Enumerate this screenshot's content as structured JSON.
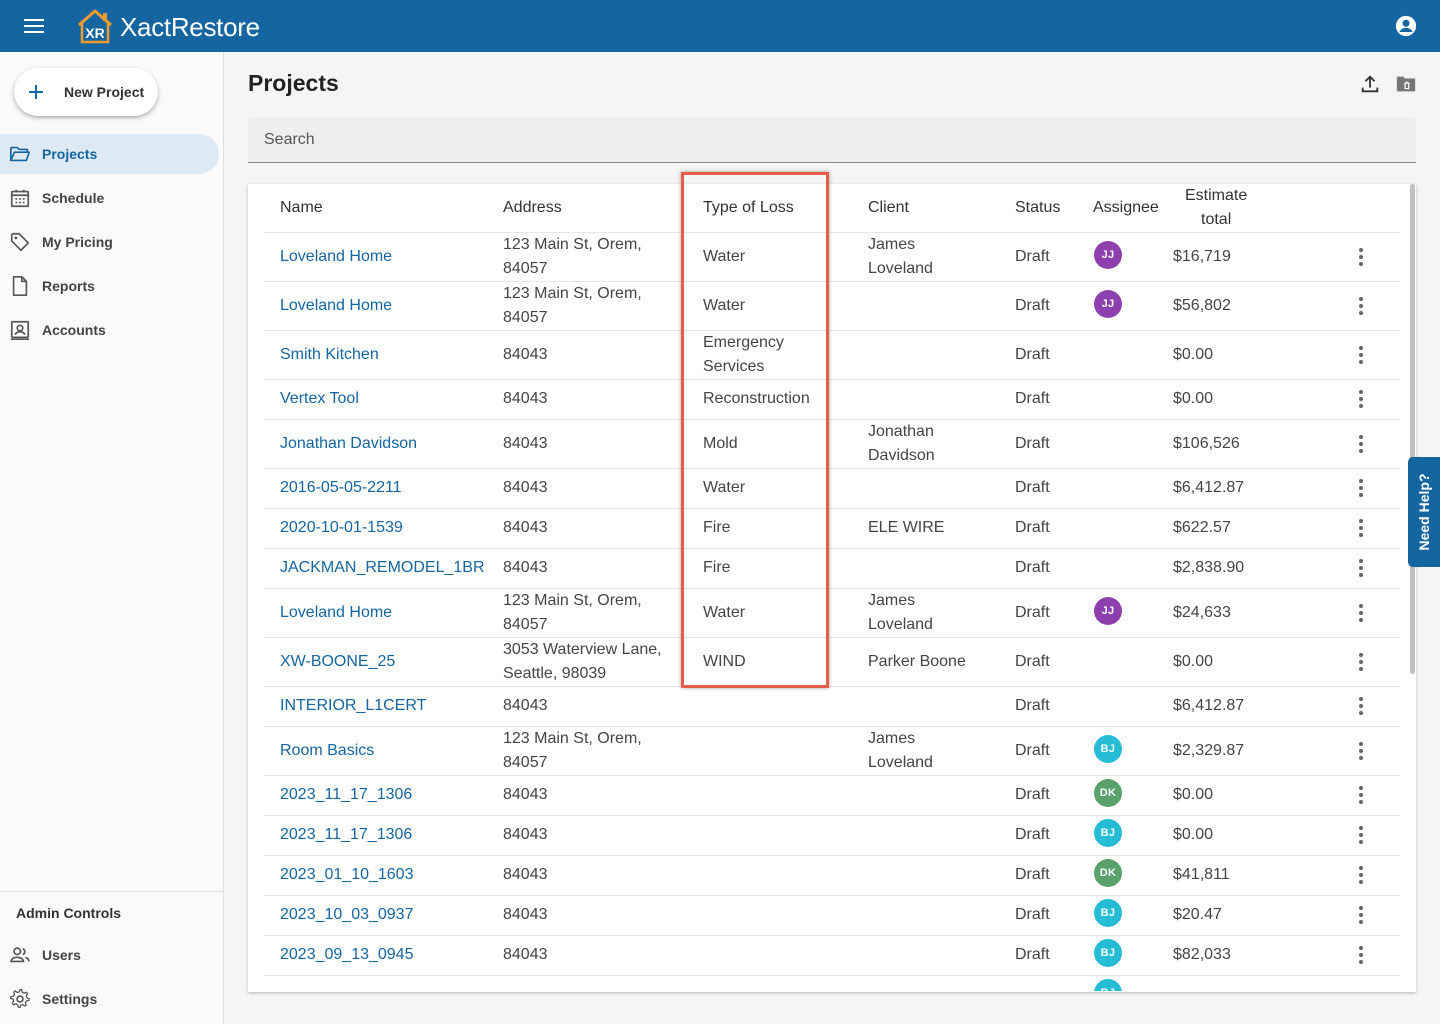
{
  "app": {
    "name": "XactRestore",
    "logo_text": "XR"
  },
  "sidebar": {
    "new_project_label": "New Project",
    "items": [
      {
        "label": "Projects",
        "icon": "folder-open-icon",
        "active": true
      },
      {
        "label": "Schedule",
        "icon": "calendar-icon"
      },
      {
        "label": "My Pricing",
        "icon": "tag-icon"
      },
      {
        "label": "Reports",
        "icon": "document-icon"
      },
      {
        "label": "Accounts",
        "icon": "contact-card-icon"
      }
    ],
    "admin_title": "Admin Controls",
    "admin_items": [
      {
        "label": "Users",
        "icon": "users-icon"
      },
      {
        "label": "Settings",
        "icon": "gear-icon"
      }
    ]
  },
  "main": {
    "title": "Projects",
    "search_placeholder": "Search"
  },
  "table": {
    "headers": {
      "name": "Name",
      "address": "Address",
      "type_of_loss": "Type of Loss",
      "client": "Client",
      "status": "Status",
      "assignee": "Assignee",
      "estimate_line1": "Estimate",
      "estimate_line2": "total"
    },
    "rows": [
      {
        "name": "Loveland Home",
        "address1": "123 Main St, Orem,",
        "address2": "84057",
        "type1": "Water",
        "type2": "",
        "client1": "James",
        "client2": "Loveland",
        "status": "Draft",
        "assignee": "JJ",
        "assignee_color": "#8e3fae",
        "total": "$16,719"
      },
      {
        "name": "Loveland Home",
        "address1": "123 Main St, Orem,",
        "address2": "84057",
        "type1": "Water",
        "type2": "",
        "client1": "",
        "client2": "",
        "status": "Draft",
        "assignee": "JJ",
        "assignee_color": "#8e3fae",
        "total": "$56,802"
      },
      {
        "name": "Smith Kitchen",
        "address1": "84043",
        "address2": "",
        "type1": "Emergency",
        "type2": "Services",
        "client1": "",
        "client2": "",
        "status": "Draft",
        "assignee": "",
        "assignee_color": "",
        "total": "$0.00"
      },
      {
        "name": "Vertex Tool",
        "address1": "84043",
        "address2": "",
        "type1": "Reconstruction",
        "type2": "",
        "client1": "",
        "client2": "",
        "status": "Draft",
        "assignee": "",
        "assignee_color": "",
        "total": "$0.00"
      },
      {
        "name": "Jonathan Davidson",
        "address1": "84043",
        "address2": "",
        "type1": "Mold",
        "type2": "",
        "client1": "Jonathan",
        "client2": "Davidson",
        "status": "Draft",
        "assignee": "",
        "assignee_color": "",
        "total": "$106,526"
      },
      {
        "name": "2016-05-05-2211",
        "address1": "84043",
        "address2": "",
        "type1": "Water",
        "type2": "",
        "client1": "",
        "client2": "",
        "status": "Draft",
        "assignee": "",
        "assignee_color": "",
        "total": "$6,412.87"
      },
      {
        "name": "2020-10-01-1539",
        "address1": "84043",
        "address2": "",
        "type1": "Fire",
        "type2": "",
        "client1": "ELE WIRE",
        "client2": "",
        "status": "Draft",
        "assignee": "",
        "assignee_color": "",
        "total": "$622.57"
      },
      {
        "name": "JACKMAN_REMODEL_1BR",
        "address1": "84043",
        "address2": "",
        "type1": "Fire",
        "type2": "",
        "client1": "",
        "client2": "",
        "status": "Draft",
        "assignee": "",
        "assignee_color": "",
        "total": "$2,838.90"
      },
      {
        "name": "Loveland Home",
        "address1": "123 Main St, Orem,",
        "address2": "84057",
        "type1": "Water",
        "type2": "",
        "client1": "James",
        "client2": "Loveland",
        "status": "Draft",
        "assignee": "JJ",
        "assignee_color": "#8e3fae",
        "total": "$24,633"
      },
      {
        "name": "XW-BOONE_25",
        "address1": "3053 Waterview Lane,",
        "address2": "Seattle, 98039",
        "type1": "WIND",
        "type2": "",
        "client1": "Parker Boone",
        "client2": "",
        "status": "Draft",
        "assignee": "",
        "assignee_color": "",
        "total": "$0.00"
      },
      {
        "name": "INTERIOR_L1CERT",
        "address1": "84043",
        "address2": "",
        "type1": "",
        "type2": "",
        "client1": "",
        "client2": "",
        "status": "Draft",
        "assignee": "",
        "assignee_color": "",
        "total": "$6,412.87"
      },
      {
        "name": "Room Basics",
        "address1": "123 Main St, Orem,",
        "address2": "84057",
        "type1": "",
        "type2": "",
        "client1": "James",
        "client2": "Loveland",
        "status": "Draft",
        "assignee": "BJ",
        "assignee_color": "#26bcd4",
        "total": "$2,329.87"
      },
      {
        "name": "2023_11_17_1306",
        "address1": "84043",
        "address2": "",
        "type1": "",
        "type2": "",
        "client1": "",
        "client2": "",
        "status": "Draft",
        "assignee": "DK",
        "assignee_color": "#5aa06a",
        "total": "$0.00"
      },
      {
        "name": "2023_11_17_1306",
        "address1": "84043",
        "address2": "",
        "type1": "",
        "type2": "",
        "client1": "",
        "client2": "",
        "status": "Draft",
        "assignee": "BJ",
        "assignee_color": "#26bcd4",
        "total": "$0.00"
      },
      {
        "name": "2023_01_10_1603",
        "address1": "84043",
        "address2": "",
        "type1": "",
        "type2": "",
        "client1": "",
        "client2": "",
        "status": "Draft",
        "assignee": "DK",
        "assignee_color": "#5aa06a",
        "total": "$41,811"
      },
      {
        "name": "2023_10_03_0937",
        "address1": "84043",
        "address2": "",
        "type1": "",
        "type2": "",
        "client1": "",
        "client2": "",
        "status": "Draft",
        "assignee": "BJ",
        "assignee_color": "#26bcd4",
        "total": "$20.47"
      },
      {
        "name": "2023_09_13_0945",
        "address1": "84043",
        "address2": "",
        "type1": "",
        "type2": "",
        "client1": "",
        "client2": "",
        "status": "Draft",
        "assignee": "BJ",
        "assignee_color": "#26bcd4",
        "total": "$82,033"
      },
      {
        "name": "",
        "address1": "",
        "address2": "",
        "type1": "",
        "type2": "",
        "client1": "",
        "client2": "",
        "status": "",
        "assignee": "BJ",
        "assignee_color": "#26bcd4",
        "total": ""
      }
    ]
  },
  "help": {
    "label": "Need Help?"
  },
  "colors": {
    "brand": "#1565a0",
    "highlight": "#e85c4a",
    "logo_orange": "#f29a2e"
  }
}
